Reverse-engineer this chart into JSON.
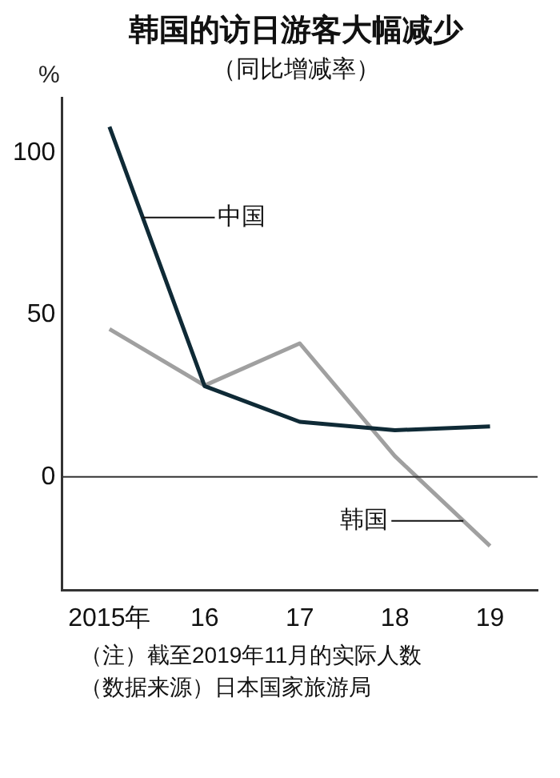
{
  "chart_data": {
    "type": "line",
    "title": "韩国的访日游客大幅减少",
    "subtitle": "（同比增减率）",
    "ylabel": "%",
    "categories": [
      "2015年",
      "16",
      "17",
      "18",
      "19"
    ],
    "series": [
      {
        "name": "中国",
        "color": "#0f2a36",
        "values": [
          108,
          28,
          17,
          14.4,
          15.6
        ]
      },
      {
        "name": "韩国",
        "color": "#a0a0a0",
        "values": [
          45.6,
          28.2,
          41.2,
          6.4,
          -21.3
        ]
      }
    ],
    "ylim": [
      -35,
      117
    ],
    "yticks": [
      0,
      50,
      100
    ],
    "ref_lines": [
      {
        "axis": "y",
        "value": 0,
        "color": "#333333"
      }
    ],
    "grid": false,
    "legend": false,
    "marker": "none",
    "line_style": "solid",
    "annotations": [
      "（注）截至2019年11月的实际人数",
      "（数据来源）日本国家旅游局"
    ]
  }
}
